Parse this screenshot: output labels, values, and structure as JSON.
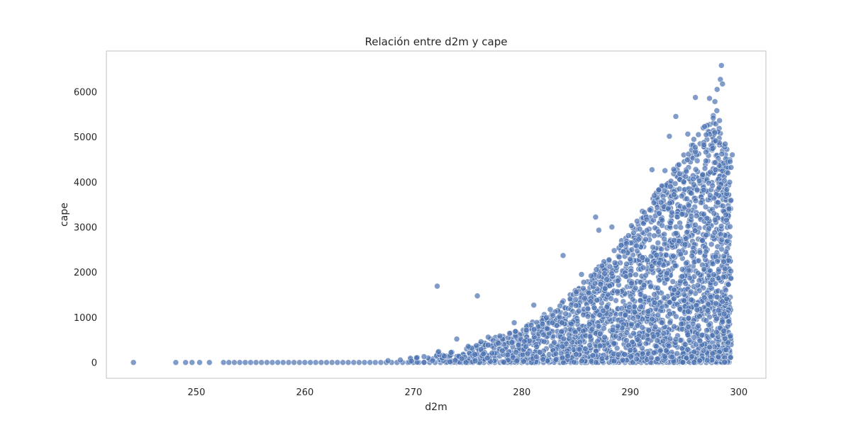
{
  "chart_data": {
    "type": "scatter",
    "title": "Relación entre d2m y cape",
    "xlabel": "d2m",
    "ylabel": "cape",
    "xlim": [
      241.7,
      302.5
    ],
    "ylim": [
      -350,
      6900
    ],
    "xticks": [
      250,
      260,
      270,
      280,
      290,
      300
    ],
    "yticks": [
      0,
      1000,
      2000,
      3000,
      4000,
      5000,
      6000
    ],
    "grid": false,
    "marker_color": "#4c72b0",
    "marker_alpha": 0.7,
    "outliers": [
      [
        244.2,
        0
      ],
      [
        248.1,
        0
      ],
      [
        249.0,
        0
      ],
      [
        249.6,
        0
      ],
      [
        250.3,
        0
      ],
      [
        251.2,
        0
      ],
      [
        272.2,
        1690
      ],
      [
        275.9,
        1475
      ],
      [
        283.8,
        2370
      ],
      [
        286.8,
        3220
      ],
      [
        292.0,
        4270
      ],
      [
        294.2,
        5450
      ],
      [
        293.6,
        5010
      ],
      [
        296.0,
        5870
      ],
      [
        297.3,
        5850
      ],
      [
        297.8,
        5780
      ],
      [
        298.4,
        6580
      ],
      [
        298.3,
        6270
      ],
      [
        298.5,
        6170
      ],
      [
        298.0,
        6050
      ],
      [
        295.3,
        5060
      ],
      [
        294.0,
        4280
      ],
      [
        293.2,
        4250
      ],
      [
        288.3,
        3000
      ],
      [
        287.1,
        2930
      ],
      [
        281.1,
        1270
      ],
      [
        285.5,
        1950
      ],
      [
        279.3,
        880
      ],
      [
        276.9,
        560
      ],
      [
        274.0,
        520
      ],
      [
        299.4,
        4600
      ],
      [
        299.2,
        4450
      ],
      [
        299.0,
        4200
      ],
      [
        298.9,
        3830
      ],
      [
        299.1,
        3400
      ],
      [
        298.8,
        1600
      ]
    ],
    "point_cloud": {
      "description_of_band": "dense scatter between d2m 252 and 299; cape rises roughly exponentially with d2m",
      "upper_envelope": [
        [
          252,
          0
        ],
        [
          262,
          10
        ],
        [
          266,
          60
        ],
        [
          270,
          170
        ],
        [
          275,
          360
        ],
        [
          280,
          760
        ],
        [
          284,
          1400
        ],
        [
          287,
          2100
        ],
        [
          290,
          3000
        ],
        [
          292,
          3650
        ],
        [
          294,
          4250
        ],
        [
          296,
          5000
        ],
        [
          298,
          5600
        ],
        [
          299,
          4700
        ]
      ],
      "x_range": [
        252.5,
        299.3
      ],
      "count": 2600
    }
  }
}
